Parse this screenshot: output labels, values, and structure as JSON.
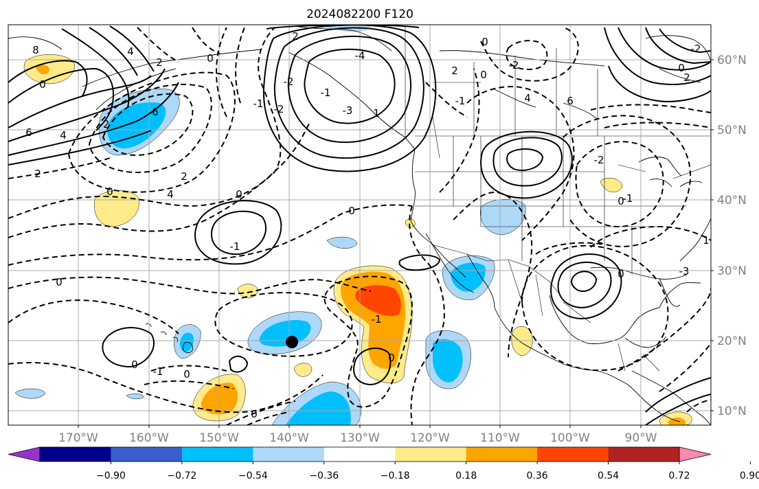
{
  "title": "2024082200 F120",
  "lon_labels": [
    "170°W",
    "160°W",
    "150°W",
    "140°W",
    "130°W",
    "120°W",
    "110°W",
    "100°W",
    "90°W"
  ],
  "lat_labels": [
    "60°N",
    "50°N",
    "40°N",
    "30°N",
    "20°N",
    "10°N"
  ],
  "colorbar": {
    "colors": [
      "#9932cc",
      "#00008b",
      "#3a5fcd",
      "#00bfff",
      "#add8f8",
      "#ffffff",
      "#ffeb8a",
      "#ffa500",
      "#ff4500",
      "#b22222",
      "#ff88b0"
    ],
    "ticks": [
      "−0.90",
      "−0.72",
      "−0.54",
      "−0.36",
      "−0.18",
      "0.18",
      "0.36",
      "0.54",
      "0.72",
      "0.90"
    ]
  },
  "contour_labels": [
    "8",
    "6",
    "4",
    "2",
    "0",
    "-2",
    "0",
    "2",
    "4",
    "6",
    "4",
    "2",
    "0",
    "-1",
    "-2",
    "-1",
    "-3",
    "-4",
    "2",
    "-2",
    "1",
    "2",
    "0",
    "-1",
    "0",
    "-2",
    "4",
    "6",
    "-2",
    "-1",
    "0",
    "1",
    "-3",
    "0",
    "2",
    "-2",
    "0",
    "0",
    "-1",
    "0",
    "0",
    "-1",
    "0",
    "0",
    "-1",
    "0",
    "0"
  ],
  "chart_data": {
    "type": "heatmap",
    "title": "2024082200 F120",
    "x_ticks": [
      "170°W",
      "160°W",
      "150°W",
      "140°W",
      "130°W",
      "120°W",
      "110°W",
      "100°W",
      "90°W"
    ],
    "y_ticks": [
      "60°N",
      "50°N",
      "40°N",
      "30°N",
      "20°N",
      "10°N"
    ],
    "xlim": [
      "180°W",
      "80°W"
    ],
    "ylim": [
      "8°N",
      "65°N"
    ],
    "colorbar_levels": [
      -0.9,
      -0.72,
      -0.54,
      -0.36,
      -0.18,
      0.18,
      0.36,
      0.54,
      0.72,
      0.9
    ],
    "colorbar_ticks": [
      "−0.90",
      "−0.72",
      "−0.54",
      "−0.36",
      "−0.18",
      "0.18",
      "0.36",
      "0.54",
      "0.72",
      "0.90"
    ],
    "grid": true,
    "marker": "filled black circle near 140°W, 20°N"
  }
}
